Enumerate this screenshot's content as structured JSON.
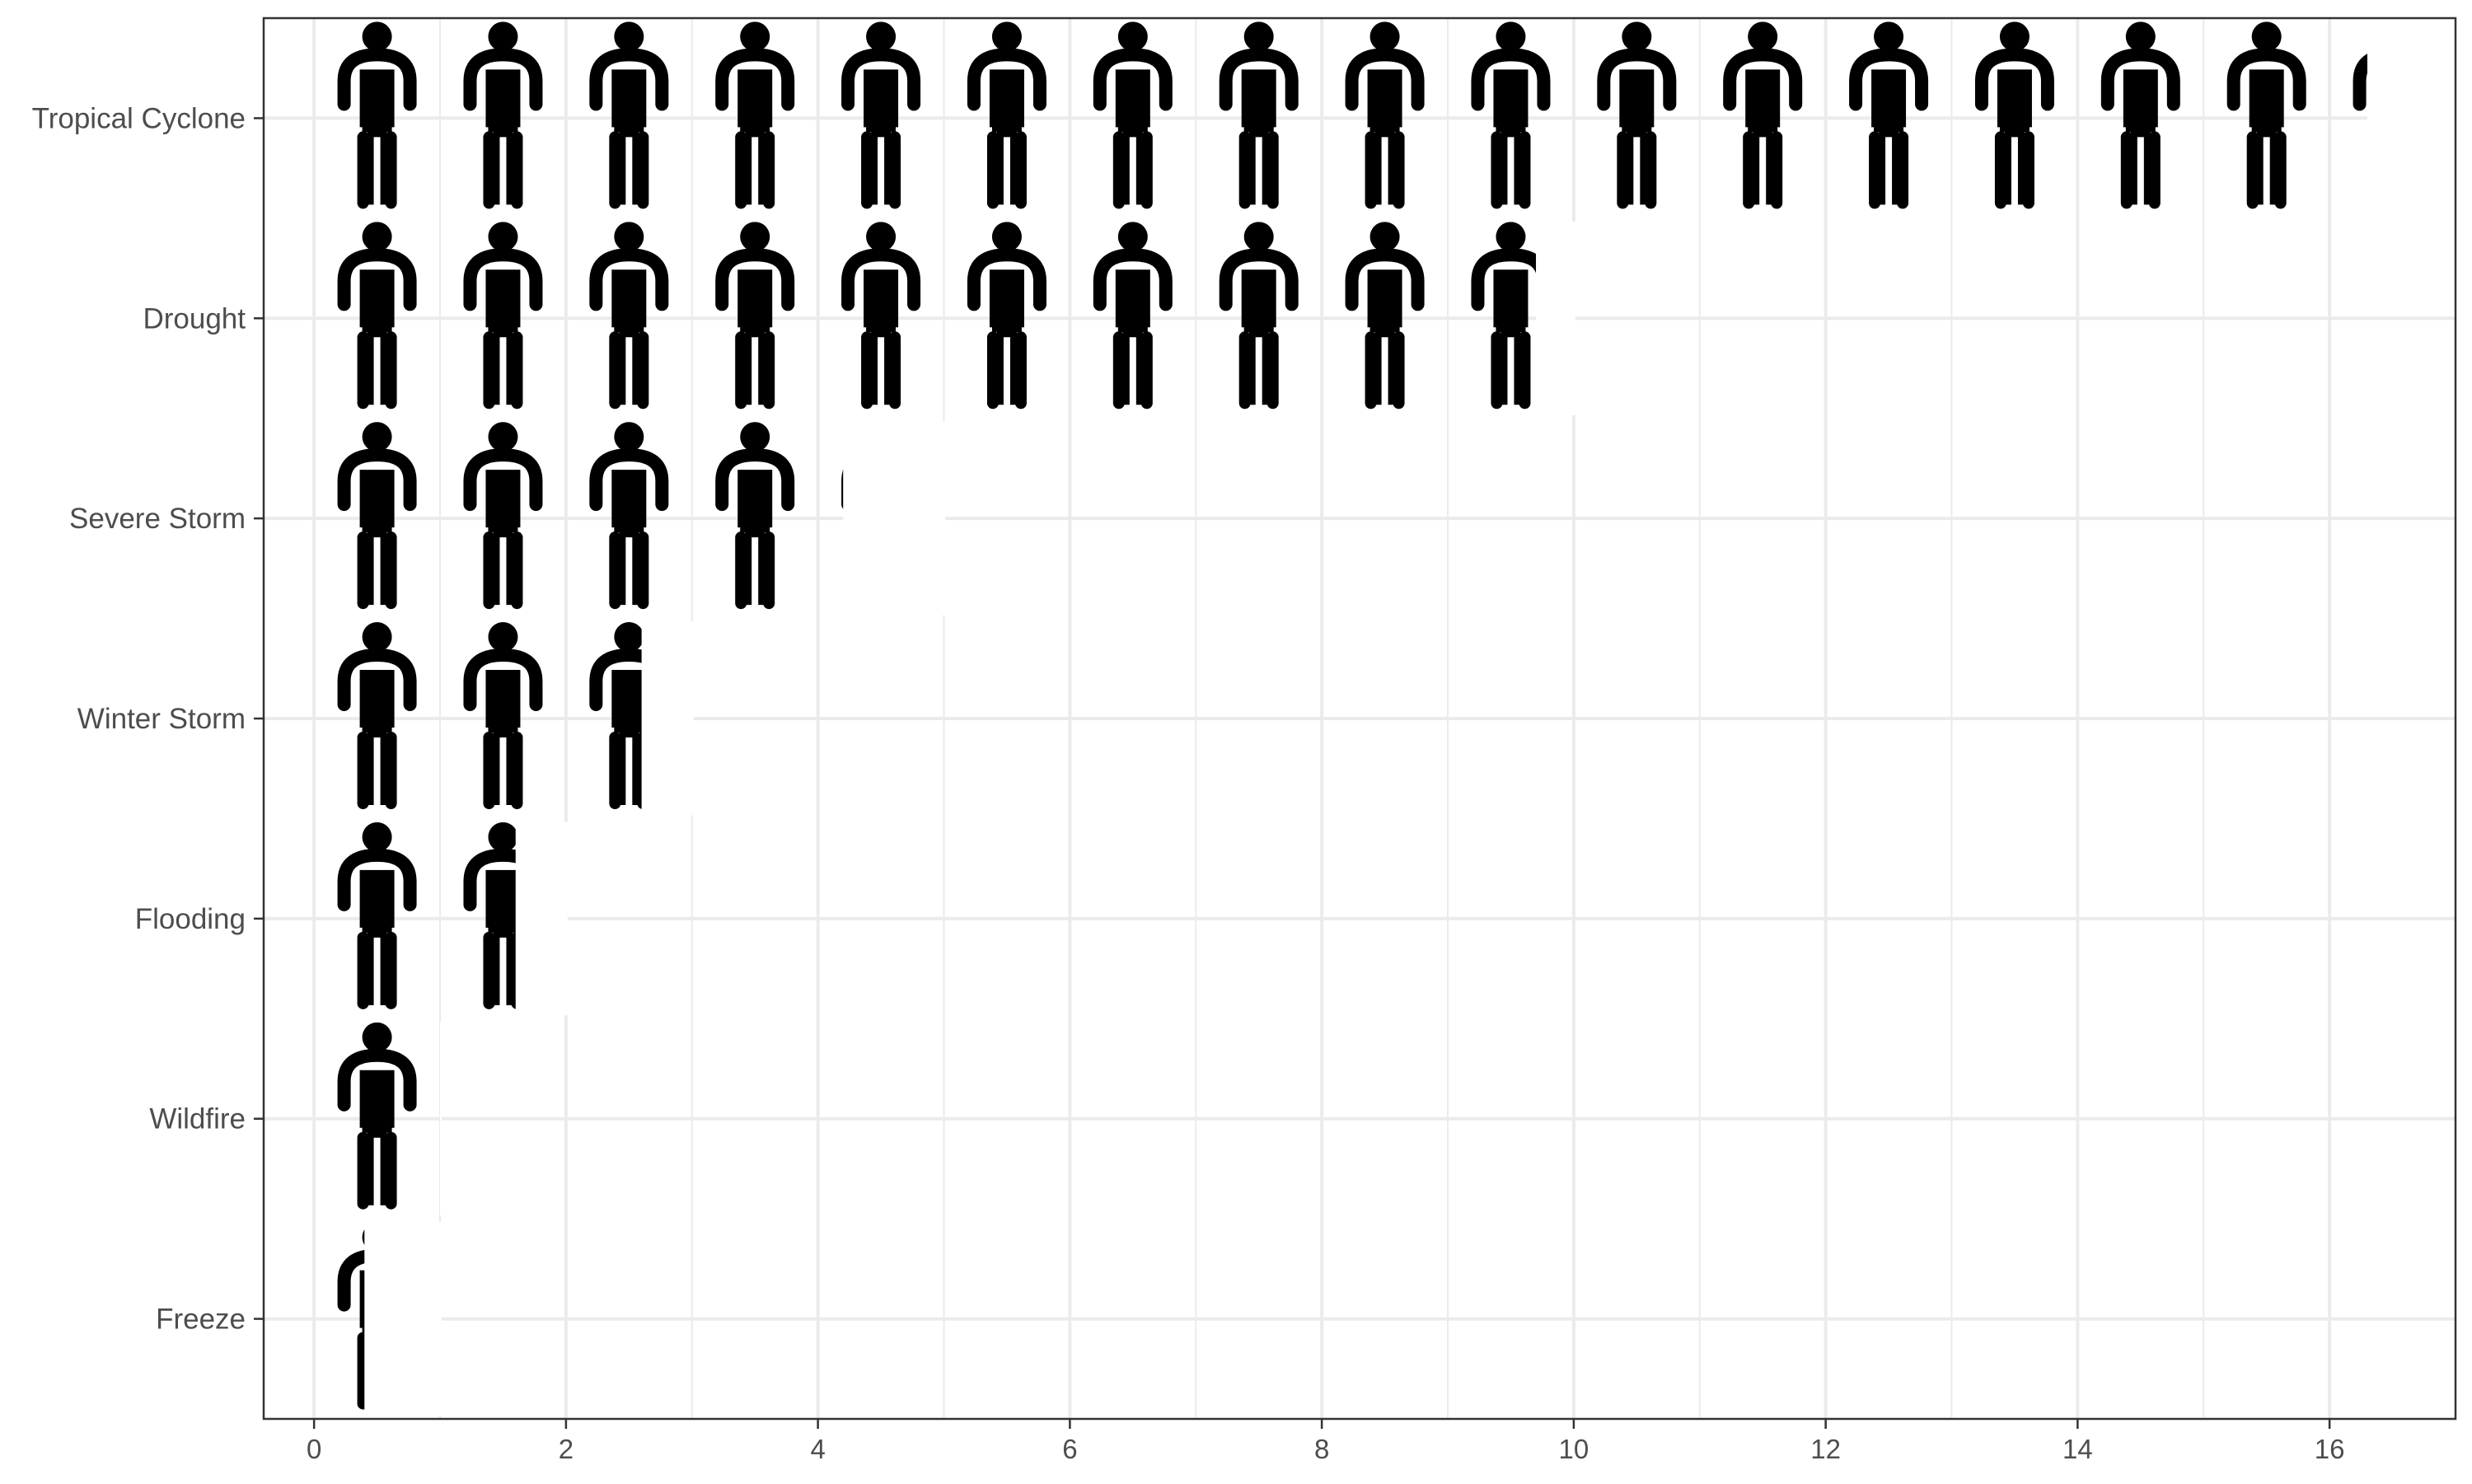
{
  "chart_data": {
    "type": "bar",
    "style": "pictogram",
    "icon": "person-icon",
    "icon_color": "#000000",
    "categories": [
      "Tropical Cyclone",
      "Drought",
      "Severe Storm",
      "Winter Storm",
      "Flooding",
      "Wildfire",
      "Freeze"
    ],
    "values": [
      16.3,
      9.7,
      4.2,
      2.6,
      1.6,
      1.0,
      0.4
    ],
    "title": "",
    "xlabel": "",
    "ylabel": "",
    "xlim": [
      -0.4,
      17.0
    ],
    "x_ticks": [
      0,
      2,
      4,
      6,
      8,
      10,
      12,
      14,
      16
    ],
    "grid": true,
    "legend": "none"
  }
}
